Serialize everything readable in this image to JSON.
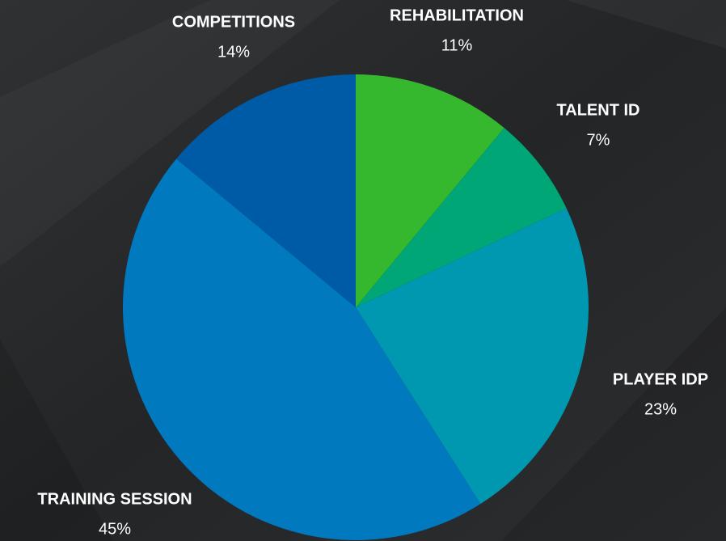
{
  "chart_data": {
    "type": "pie",
    "categories": [
      "REHABILITATION",
      "TALENT ID",
      "PLAYER IDP",
      "TRAINING SESSION",
      "COMPETITIONS"
    ],
    "values": [
      11,
      7,
      23,
      45,
      14
    ],
    "value_labels": [
      "11%",
      "7%",
      "23%",
      "45%",
      "14%"
    ],
    "colors": [
      "#36b82e",
      "#00a676",
      "#0097b0",
      "#0079bf",
      "#005ba6"
    ]
  }
}
